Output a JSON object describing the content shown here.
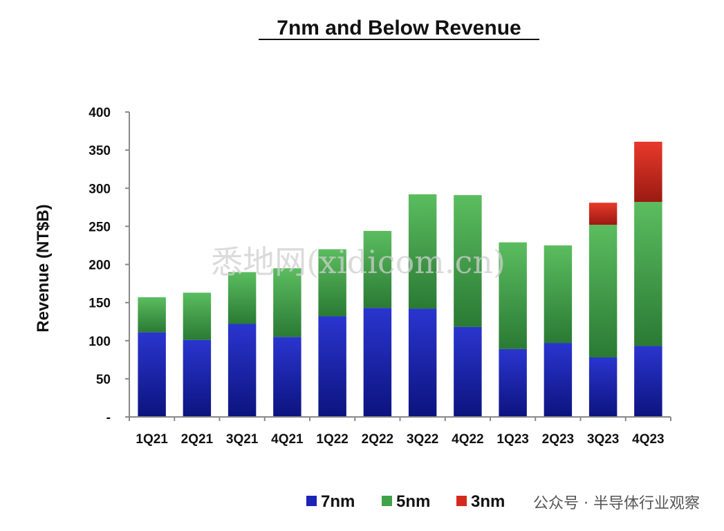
{
  "chart_data": {
    "type": "bar",
    "stacked": true,
    "title": "7nm and Below Revenue",
    "ylabel": "Revenue (NT$B)",
    "xlabel": "",
    "ylim": [
      0,
      400
    ],
    "yticks": [
      0,
      50,
      100,
      150,
      200,
      250,
      300,
      350,
      400
    ],
    "ytick_labels": [
      "-",
      "50",
      "100",
      "150",
      "200",
      "250",
      "300",
      "350",
      "400"
    ],
    "categories": [
      "1Q21",
      "2Q21",
      "3Q21",
      "4Q21",
      "1Q22",
      "2Q22",
      "3Q22",
      "4Q22",
      "1Q23",
      "2Q23",
      "3Q23",
      "4Q23"
    ],
    "series": [
      {
        "name": "7nm",
        "color": "#1a24b5",
        "values": [
          111,
          101,
          122,
          105,
          132,
          143,
          142,
          118,
          89,
          97,
          78,
          93
        ]
      },
      {
        "name": "5nm",
        "color": "#3fa34a",
        "values": [
          46,
          62,
          68,
          90,
          88,
          101,
          150,
          173,
          140,
          128,
          174,
          189
        ]
      },
      {
        "name": "3nm",
        "color": "#d42a1e",
        "values": [
          0,
          0,
          0,
          0,
          0,
          0,
          0,
          0,
          0,
          0,
          29,
          79
        ]
      }
    ],
    "legend_position": "bottom-right",
    "grid": false
  },
  "watermark": "悉地网(xidicom.cn)",
  "footer_text": "公众号 · 半导体行业观察"
}
